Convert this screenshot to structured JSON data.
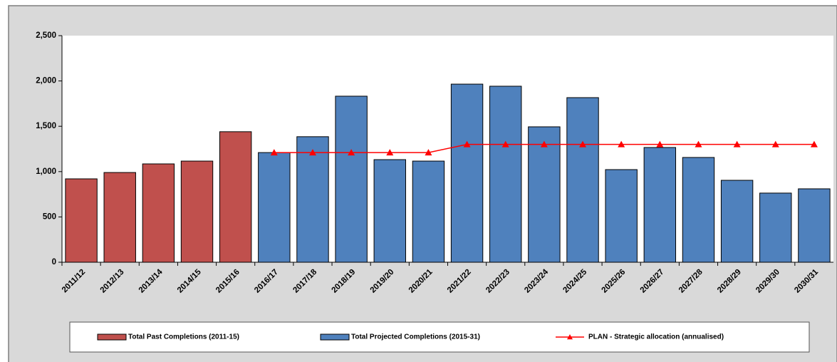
{
  "chart_data": {
    "type": "bar",
    "categories": [
      "2011/12",
      "2012/13",
      "2013/14",
      "2014/15",
      "2015/16",
      "2016/17",
      "2017/18",
      "2018/19",
      "2019/20",
      "2020/21",
      "2021/22",
      "2022/23",
      "2023/24",
      "2024/25",
      "2025/26",
      "2026/27",
      "2027/28",
      "2028/29",
      "2029/30",
      "2030/31"
    ],
    "series": [
      {
        "name": "Total Past Completions (2011-15)",
        "type": "bar",
        "color": "#c0504d",
        "values": [
          920,
          990,
          1085,
          1116,
          1440,
          null,
          null,
          null,
          null,
          null,
          null,
          null,
          null,
          null,
          null,
          null,
          null,
          null,
          null,
          null
        ]
      },
      {
        "name": "Total Projected Completions (2015-31)",
        "type": "bar",
        "color": "#4f81bd",
        "values": [
          null,
          null,
          null,
          null,
          null,
          1210,
          1385,
          1832,
          1132,
          1116,
          1965,
          1942,
          1494,
          1816,
          1022,
          1266,
          1156,
          904,
          763,
          810
        ]
      },
      {
        "name": "PLAN - Strategic allocation (annualised)",
        "type": "line",
        "color": "#ff0000",
        "values": [
          null,
          null,
          null,
          null,
          null,
          1210,
          1210,
          1210,
          1210,
          1210,
          1300,
          1300,
          1300,
          1300,
          1300,
          1300,
          1300,
          1300,
          1300,
          1300
        ]
      }
    ],
    "ylim": [
      0,
      2500
    ],
    "yticks": [
      0,
      500,
      {
        "value": 1000,
        "label": "1,000"
      },
      {
        "value": 1500,
        "label": "1,500"
      },
      {
        "value": 2000,
        "label": "2,000"
      },
      {
        "value": 2500,
        "label": "2,500"
      }
    ],
    "grid": false
  }
}
